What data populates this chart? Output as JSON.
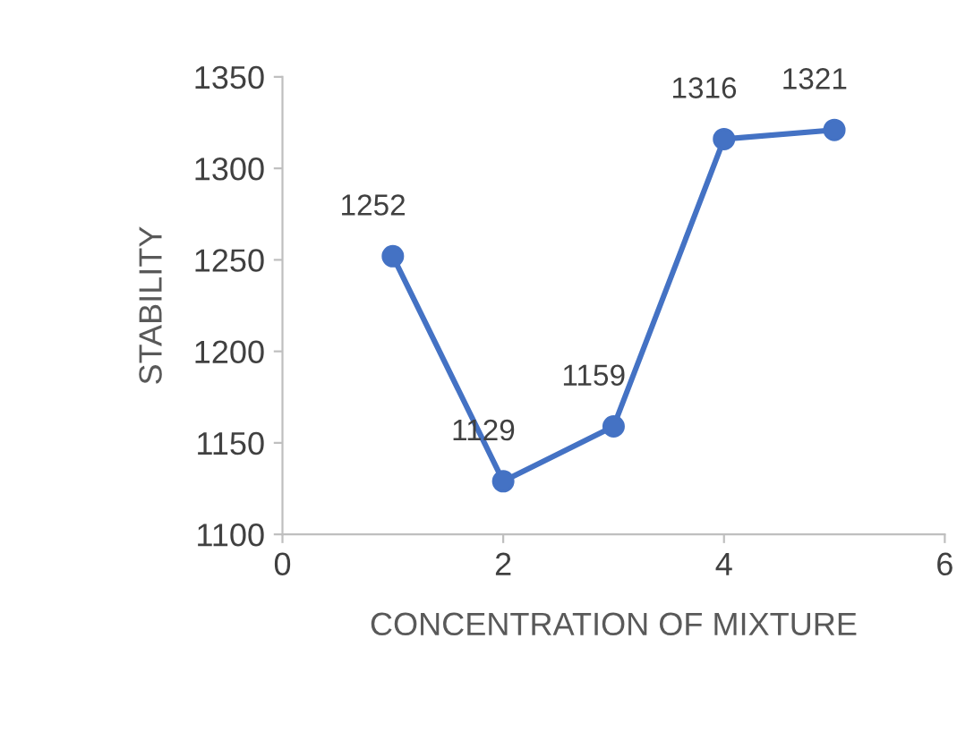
{
  "chart_data": {
    "type": "line",
    "xlabel": "CONCENTRATION OF MIXTURE",
    "ylabel": "STABILITY",
    "x": [
      1,
      2,
      3,
      4,
      5
    ],
    "series": [
      {
        "color": "#4472c4",
        "values": [
          1252,
          1129,
          1159,
          1316,
          1321
        ]
      }
    ],
    "xlim": [
      0,
      6
    ],
    "xticks": [
      0,
      2,
      4,
      6
    ],
    "ylim": [
      1100,
      1350
    ],
    "yticks": [
      1100,
      1150,
      1200,
      1250,
      1300,
      1350
    ],
    "grid": false,
    "marker": "circle",
    "line_style": "solid",
    "data_labels": true
  }
}
